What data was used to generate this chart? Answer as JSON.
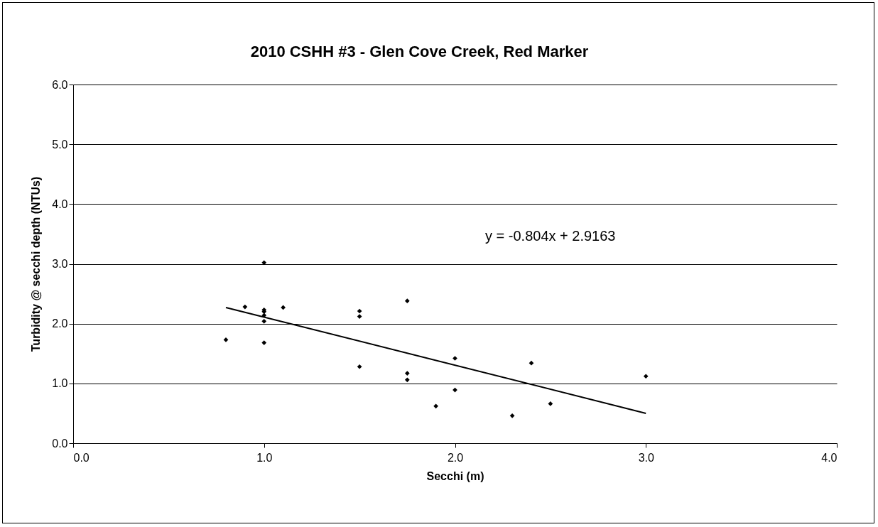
{
  "chart_data": {
    "type": "scatter",
    "title": "2010 CSHH #3 - Glen Cove Creek, Red Marker",
    "xlabel": "Secchi (m)",
    "ylabel": "Turbidity @ secchi depth (NTUs)",
    "annotations": [
      "y = -0.804x + 2.9163"
    ],
    "series": [
      {
        "color": "#000000",
        "marker": "diamond",
        "x": [
          0.8,
          0.9,
          1.0,
          1.0,
          1.0,
          1.0,
          1.0,
          1.0,
          1.1,
          1.5,
          1.5,
          1.5,
          1.75,
          1.75,
          1.75,
          1.9,
          2.0,
          2.0,
          2.3,
          2.4,
          2.5,
          3.0
        ],
        "values": [
          1.73,
          2.28,
          3.02,
          2.23,
          2.2,
          2.14,
          2.04,
          1.68,
          2.27,
          2.21,
          2.12,
          1.28,
          2.38,
          1.17,
          1.06,
          0.62,
          1.42,
          0.89,
          0.46,
          1.34,
          0.66,
          1.12
        ]
      },
      {
        "type": "line",
        "color": "#000000",
        "line_style": "solid",
        "x": [
          0.8,
          3.0
        ],
        "values": [
          2.27,
          0.5
        ]
      }
    ],
    "xlim": [
      0,
      4
    ],
    "xticks": [
      {
        "value": 0,
        "label": "0.0"
      },
      {
        "value": 1,
        "label": "1.0"
      },
      {
        "value": 2,
        "label": "2.0"
      },
      {
        "value": 3,
        "label": "3.0"
      },
      {
        "value": 4,
        "label": "4.0"
      }
    ],
    "ylim": [
      0,
      6
    ],
    "yticks": [
      {
        "value": 0,
        "label": "0.0"
      },
      {
        "value": 1,
        "label": "1.0"
      },
      {
        "value": 2,
        "label": "2.0"
      },
      {
        "value": 3,
        "label": "3.0"
      },
      {
        "value": 4,
        "label": "4.0"
      },
      {
        "value": 5,
        "label": "5.0"
      },
      {
        "value": 6,
        "label": "6.0"
      }
    ],
    "grid": "y"
  }
}
